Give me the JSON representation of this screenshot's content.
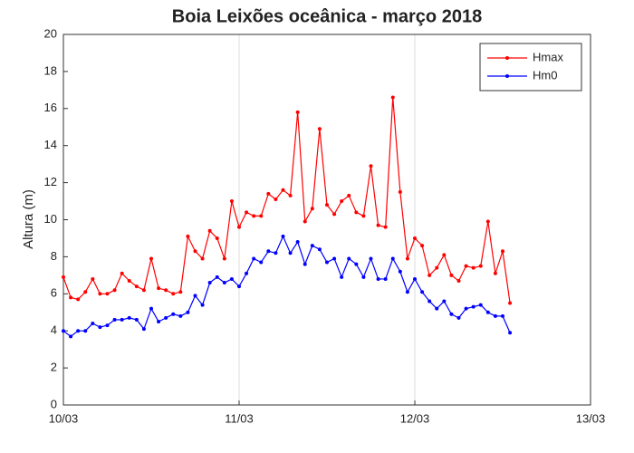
{
  "chart_data": {
    "type": "line",
    "title": "Boia Leixões oceânica - março 2018",
    "y_label": "Altura (m)",
    "x": [
      0,
      1,
      2,
      3,
      4,
      5,
      6,
      7,
      8,
      9,
      10,
      11,
      12,
      13,
      14,
      15,
      16,
      17,
      18,
      19,
      20,
      21,
      22,
      23,
      24,
      25,
      26,
      27,
      28,
      29,
      30,
      31,
      32,
      33,
      34,
      35,
      36,
      37,
      38,
      39,
      40,
      41,
      42,
      43,
      44,
      45,
      46,
      47,
      48,
      49,
      50,
      51,
      52,
      53,
      54,
      55,
      56,
      57,
      58,
      59,
      60,
      61
    ],
    "series": [
      {
        "name": "Hmax",
        "color": "#ff0000",
        "values": [
          6.9,
          5.8,
          5.7,
          6.1,
          6.8,
          6.0,
          6.0,
          6.2,
          7.1,
          6.7,
          6.4,
          6.2,
          7.9,
          6.3,
          6.2,
          6.0,
          6.1,
          9.1,
          8.3,
          7.9,
          9.4,
          9.0,
          7.9,
          11.0,
          9.6,
          10.4,
          10.2,
          10.2,
          11.4,
          11.1,
          11.6,
          11.3,
          15.8,
          9.9,
          10.6,
          14.9,
          10.8,
          10.3,
          11.0,
          11.3,
          10.4,
          10.2,
          12.9,
          9.7,
          9.6,
          16.6,
          11.5,
          7.9,
          9.0,
          8.6,
          7.0,
          7.4,
          8.1,
          7.0,
          6.7,
          7.5,
          7.4,
          7.5,
          9.9,
          7.1,
          8.3,
          5.5
        ]
      },
      {
        "name": "Hm0",
        "color": "#0000ff",
        "values": [
          4.0,
          3.7,
          4.0,
          4.0,
          4.4,
          4.2,
          4.3,
          4.6,
          4.6,
          4.7,
          4.6,
          4.1,
          5.2,
          4.5,
          4.7,
          4.9,
          4.8,
          5.0,
          5.9,
          5.4,
          6.6,
          6.9,
          6.6,
          6.8,
          6.4,
          7.1,
          7.9,
          7.7,
          8.3,
          8.2,
          9.1,
          8.2,
          8.8,
          7.6,
          8.6,
          8.4,
          7.7,
          7.9,
          6.9,
          7.9,
          7.6,
          6.9,
          7.9,
          6.8,
          6.8,
          7.9,
          7.2,
          6.1,
          6.8,
          6.1,
          5.6,
          5.2,
          5.6,
          4.9,
          4.7,
          5.2,
          5.3,
          5.4,
          5.0,
          4.8,
          4.8,
          3.9
        ]
      }
    ],
    "xlim": [
      0,
      72
    ],
    "xticks": [
      {
        "value": 0,
        "label": "10/03"
      },
      {
        "value": 24,
        "label": "11/03"
      },
      {
        "value": 48,
        "label": "12/03"
      },
      {
        "value": 72,
        "label": "13/03"
      }
    ],
    "ylim": [
      0,
      20
    ],
    "yticks": [
      0,
      2,
      4,
      6,
      8,
      10,
      12,
      14,
      16,
      18,
      20
    ],
    "grid": "x",
    "legend": "upper-right"
  }
}
